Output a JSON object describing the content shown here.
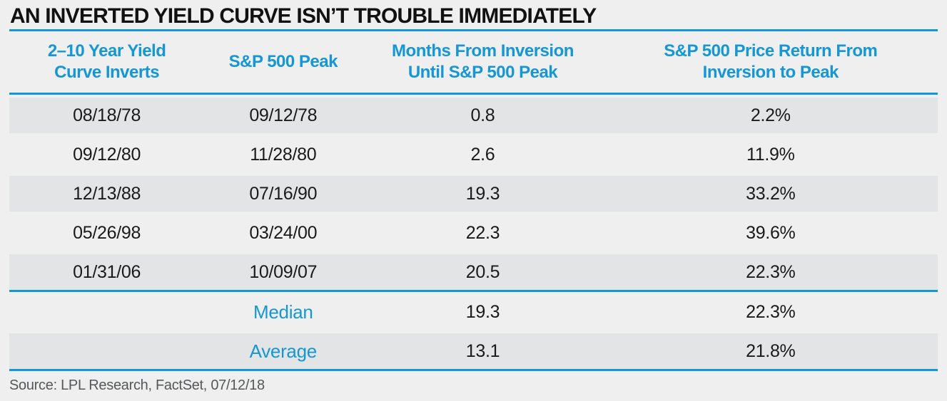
{
  "title": "AN INVERTED YIELD CURVE ISN’T TROUBLE IMMEDIATELY",
  "source": "Source: LPL Research, FactSet, 07/12/18",
  "colors": {
    "accent": "#1497D4",
    "stripe": "#E3E4E6",
    "bg": "#EFEFEF",
    "text": "#1A1A1A",
    "muted": "#55585A"
  },
  "table": {
    "columns": [
      {
        "id": "inversion_date",
        "lines": [
          "2–10 Year Yield",
          "Curve Inverts"
        ]
      },
      {
        "id": "sp500_peak",
        "lines": [
          "S&P 500 Peak"
        ]
      },
      {
        "id": "months_to_peak",
        "lines": [
          "Months From Inversion",
          "Until S&P 500 Peak"
        ]
      },
      {
        "id": "price_return",
        "lines": [
          "S&P 500 Price Return From",
          "Inversion to Peak"
        ]
      }
    ],
    "rows": [
      {
        "inversion_date": "08/18/78",
        "sp500_peak": "09/12/78",
        "months_to_peak": "0.8",
        "price_return": "2.2%"
      },
      {
        "inversion_date": "09/12/80",
        "sp500_peak": "11/28/80",
        "months_to_peak": "2.6",
        "price_return": "11.9%"
      },
      {
        "inversion_date": "12/13/88",
        "sp500_peak": "07/16/90",
        "months_to_peak": "19.3",
        "price_return": "33.2%"
      },
      {
        "inversion_date": "05/26/98",
        "sp500_peak": "03/24/00",
        "months_to_peak": "22.3",
        "price_return": "39.6%"
      },
      {
        "inversion_date": "01/31/06",
        "sp500_peak": "10/09/07",
        "months_to_peak": "20.5",
        "price_return": "22.3%"
      }
    ],
    "summary_rows": [
      {
        "label": "Median",
        "months_to_peak": "19.3",
        "price_return": "22.3%"
      },
      {
        "label": "Average",
        "months_to_peak": "13.1",
        "price_return": "21.8%"
      }
    ]
  },
  "chart_data": {
    "type": "table",
    "title": "AN INVERTED YIELD CURVE ISN’T TROUBLE IMMEDIATELY",
    "columns": [
      "2–10 Year Yield Curve Inverts",
      "S&P 500 Peak",
      "Months From Inversion Until S&P 500 Peak",
      "S&P 500 Price Return From Inversion to Peak"
    ],
    "rows": [
      [
        "08/18/78",
        "09/12/78",
        0.8,
        "2.2%"
      ],
      [
        "09/12/80",
        "11/28/80",
        2.6,
        "11.9%"
      ],
      [
        "12/13/88",
        "07/16/90",
        19.3,
        "33.2%"
      ],
      [
        "05/26/98",
        "03/24/00",
        22.3,
        "39.6%"
      ],
      [
        "01/31/06",
        "10/09/07",
        20.5,
        "22.3%"
      ]
    ],
    "summary": {
      "median": {
        "months_to_peak": 19.3,
        "price_return": "22.3%"
      },
      "average": {
        "months_to_peak": 13.1,
        "price_return": "21.8%"
      }
    },
    "source": "Source: LPL Research, FactSet, 07/12/18"
  }
}
